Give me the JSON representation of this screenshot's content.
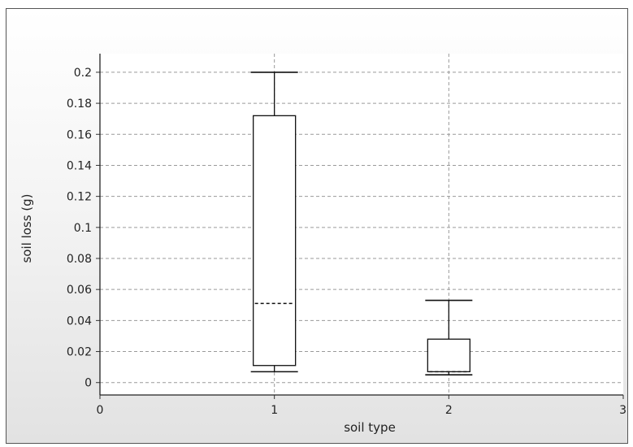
{
  "chart_data": {
    "type": "box",
    "xlabel": "soil type",
    "ylabel": "soil loss (g)",
    "xlim": [
      0,
      3
    ],
    "ylim": [
      -0.008,
      0.212
    ],
    "x_ticks": [
      "0",
      "1",
      "2",
      "3"
    ],
    "y_ticks": [
      "0.2",
      "0.18",
      "0.16",
      "0.14",
      "0.12",
      "0.1",
      "0.08",
      "0.06",
      "0.04",
      "0.02",
      "0"
    ],
    "grid": true,
    "boxes": [
      {
        "x": 1,
        "whisker_low": 0.007,
        "q1": 0.011,
        "median": 0.051,
        "q3": 0.172,
        "whisker_high": 0.2
      },
      {
        "x": 2,
        "whisker_low": 0.005,
        "q1": 0.007,
        "median": 0.007,
        "q3": 0.028,
        "whisker_high": 0.053
      }
    ]
  }
}
